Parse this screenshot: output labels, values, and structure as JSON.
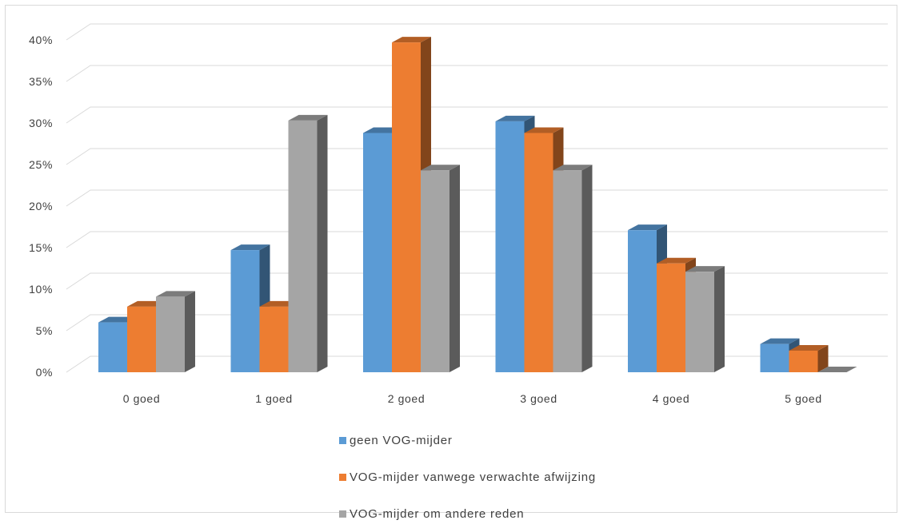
{
  "chart_data": {
    "type": "bar",
    "title": "",
    "xlabel": "",
    "ylabel": "",
    "categories": [
      "0 goed",
      "1 goed",
      "2 goed",
      "3 goed",
      "4 goed",
      "5 goed"
    ],
    "series": [
      {
        "name": "geen VOG-mijder",
        "color": "#5b9bd5",
        "values": [
          6,
          14.7,
          28.8,
          30.2,
          17.1,
          3.4
        ]
      },
      {
        "name": "VOG-mijder vanwege verwachte afwijzing",
        "color": "#ed7d31",
        "values": [
          7.9,
          7.9,
          39.7,
          28.8,
          13.1,
          2.6
        ]
      },
      {
        "name": "VOG-mijder om andere reden",
        "color": "#a5a5a5",
        "values": [
          9.1,
          30.3,
          24.3,
          24.3,
          12.1,
          0
        ]
      }
    ],
    "yticks": [
      "0%",
      "5%",
      "10%",
      "15%",
      "20%",
      "25%",
      "30%",
      "35%",
      "40%"
    ],
    "ylim": [
      0,
      40
    ],
    "grid": true,
    "legend_position": "bottom",
    "style": "3d-clustered-column"
  }
}
